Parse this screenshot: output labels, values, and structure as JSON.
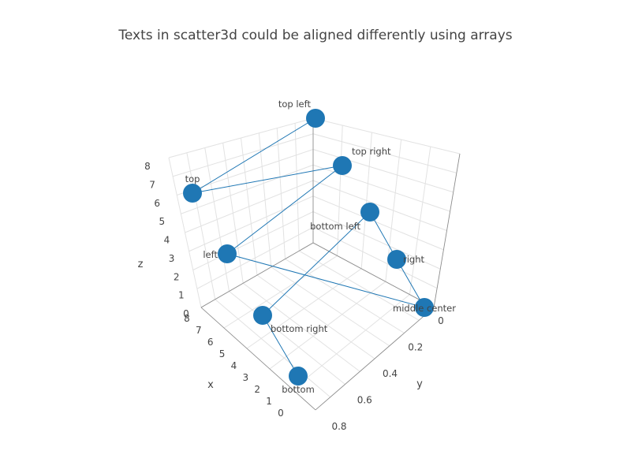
{
  "chart_data": {
    "type": "scatter3d",
    "title": "Texts in scatter3d could be aligned differently using arrays",
    "mode": "lines+markers+text",
    "color": "#1f77b4",
    "axes": {
      "x": {
        "title": "x",
        "ticks": [
          "0",
          "1",
          "2",
          "3",
          "4",
          "5",
          "6",
          "7",
          "8"
        ]
      },
      "y": {
        "title": "y",
        "ticks": [
          "0",
          "0.2",
          "0.4",
          "0.6",
          "0.8"
        ]
      },
      "z": {
        "title": "z",
        "ticks": [
          "0",
          "1",
          "2",
          "3",
          "4",
          "5",
          "6",
          "7",
          "8"
        ]
      }
    },
    "points": [
      {
        "x": 0,
        "y": 0,
        "z": 8,
        "label": "top left"
      },
      {
        "x": 1,
        "y": 1,
        "z": 7,
        "label": "top"
      },
      {
        "x": 2,
        "y": 0,
        "z": 6,
        "label": "top right"
      },
      {
        "x": 3,
        "y": 1,
        "z": 5,
        "label": "left"
      },
      {
        "x": 4,
        "y": 0,
        "z": 4,
        "label": "middle center"
      },
      {
        "x": 5,
        "y": 1,
        "z": 3,
        "label": "right"
      },
      {
        "x": 6,
        "y": 0,
        "z": 2,
        "label": "bottom left"
      },
      {
        "x": 7,
        "y": 1,
        "z": 1,
        "label": "bottom right"
      },
      {
        "x": 8,
        "y": 0,
        "z": 0,
        "label": "bottom"
      }
    ]
  }
}
